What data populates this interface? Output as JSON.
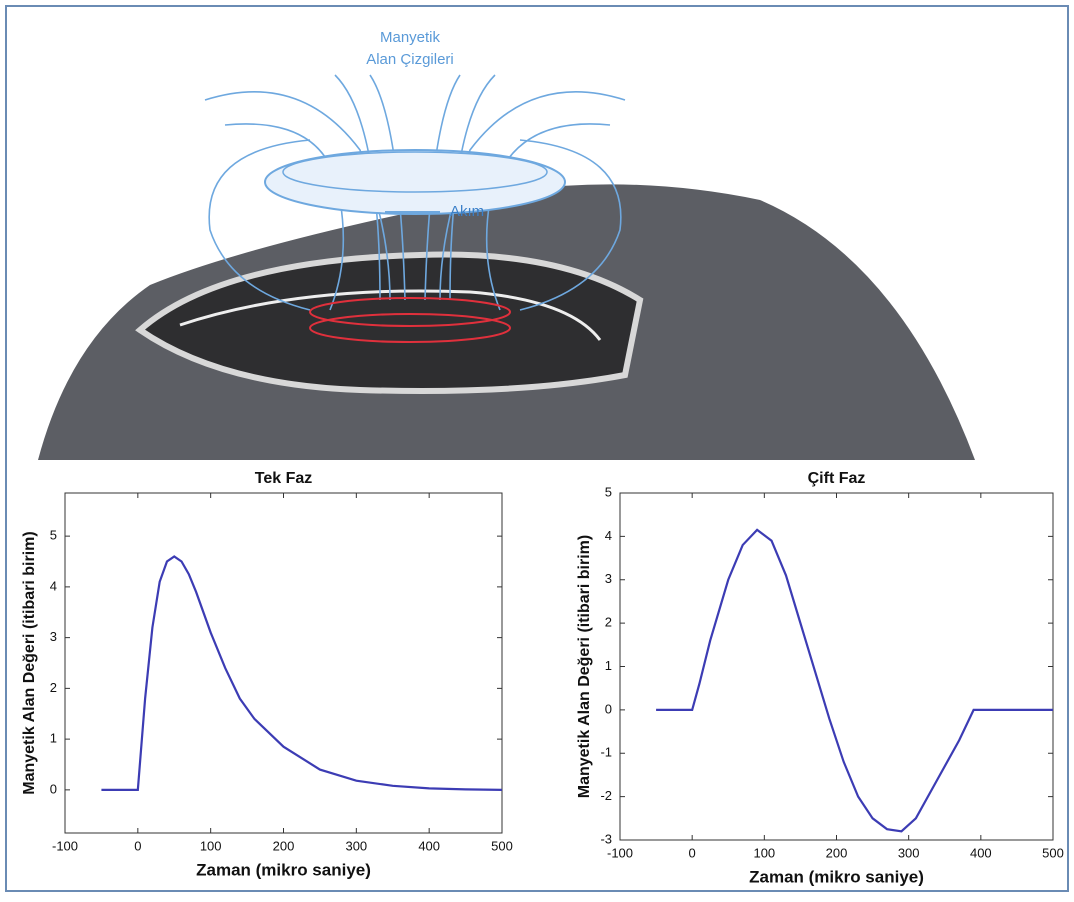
{
  "illustration": {
    "field_label_lines": [
      "Manyetik",
      "Alan Çizgileri"
    ],
    "current_label": "Akım"
  },
  "chart_data": [
    {
      "type": "line",
      "title": "Tek Faz",
      "xlabel": "Zaman (mikro saniye)",
      "ylabel": "Manyetik Alan Değeri (itibari birim)",
      "x": [
        -50,
        0,
        10,
        20,
        30,
        40,
        50,
        60,
        70,
        80,
        100,
        120,
        140,
        160,
        200,
        250,
        300,
        350,
        400,
        450,
        500
      ],
      "values": [
        0,
        0,
        1.8,
        3.2,
        4.1,
        4.5,
        4.6,
        4.5,
        4.25,
        3.9,
        3.1,
        2.4,
        1.8,
        1.4,
        0.85,
        0.4,
        0.18,
        0.08,
        0.03,
        0.01,
        0
      ],
      "color": "#3c3cb4",
      "xlim": [
        -100,
        500
      ],
      "xticks": [
        -100,
        0,
        100,
        200,
        300,
        400,
        500
      ],
      "ylim": [
        -0.85,
        5.85
      ],
      "yticks": [
        0,
        1,
        2,
        3,
        4,
        5
      ]
    },
    {
      "type": "line",
      "title": "Çift Faz",
      "xlabel": "Zaman (mikro saniye)",
      "ylabel": "Manyetik Alan Değeri (itibari birim)",
      "x": [
        -50,
        0,
        10,
        25,
        50,
        70,
        90,
        110,
        130,
        150,
        170,
        190,
        210,
        230,
        250,
        270,
        290,
        310,
        340,
        370,
        390,
        500
      ],
      "values": [
        0,
        0,
        0.6,
        1.6,
        3.0,
        3.8,
        4.15,
        3.9,
        3.1,
        2.0,
        0.9,
        -0.2,
        -1.2,
        -2.0,
        -2.5,
        -2.75,
        -2.8,
        -2.5,
        -1.6,
        -0.7,
        0,
        0
      ],
      "color": "#3c3cb4",
      "xlim": [
        -100,
        500
      ],
      "xticks": [
        -100,
        0,
        100,
        200,
        300,
        400,
        500
      ],
      "ylim": [
        -3,
        5
      ],
      "yticks": [
        -3,
        -2,
        -1,
        0,
        1,
        2,
        3,
        4,
        5
      ]
    }
  ]
}
